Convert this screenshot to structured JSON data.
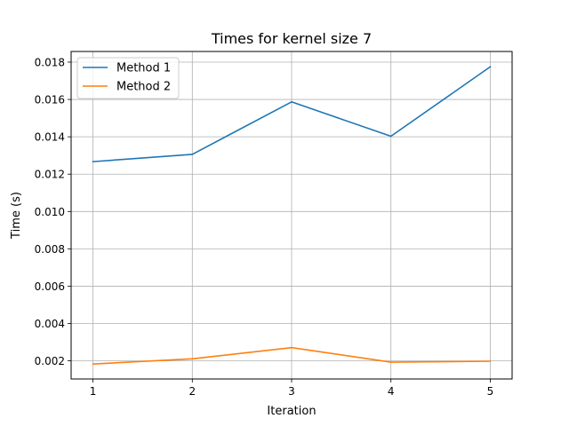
{
  "chart_data": {
    "type": "line",
    "title": "Times for kernel size 7",
    "xlabel": "Iteration",
    "ylabel": "Time (s)",
    "x": [
      1,
      2,
      3,
      4,
      5
    ],
    "xticks": [
      "1",
      "2",
      "3",
      "4",
      "5"
    ],
    "xlim": [
      0.78,
      5.22
    ],
    "ylim": [
      0.00103,
      0.01857
    ],
    "yticks": [
      "0.002",
      "0.004",
      "0.006",
      "0.008",
      "0.010",
      "0.012",
      "0.014",
      "0.016",
      "0.018"
    ],
    "ytick_values": [
      0.002,
      0.004,
      0.006,
      0.008,
      0.01,
      0.012,
      0.014,
      0.016,
      0.018
    ],
    "grid": true,
    "legend": "upper-left",
    "series": [
      {
        "name": "Method 1",
        "color": "#1f77b4",
        "values": [
          0.01267,
          0.01306,
          0.01587,
          0.01403,
          0.01775
        ]
      },
      {
        "name": "Method 2",
        "color": "#ff7f0e",
        "values": [
          0.00183,
          0.00211,
          0.00271,
          0.00193,
          0.00198
        ]
      }
    ]
  }
}
